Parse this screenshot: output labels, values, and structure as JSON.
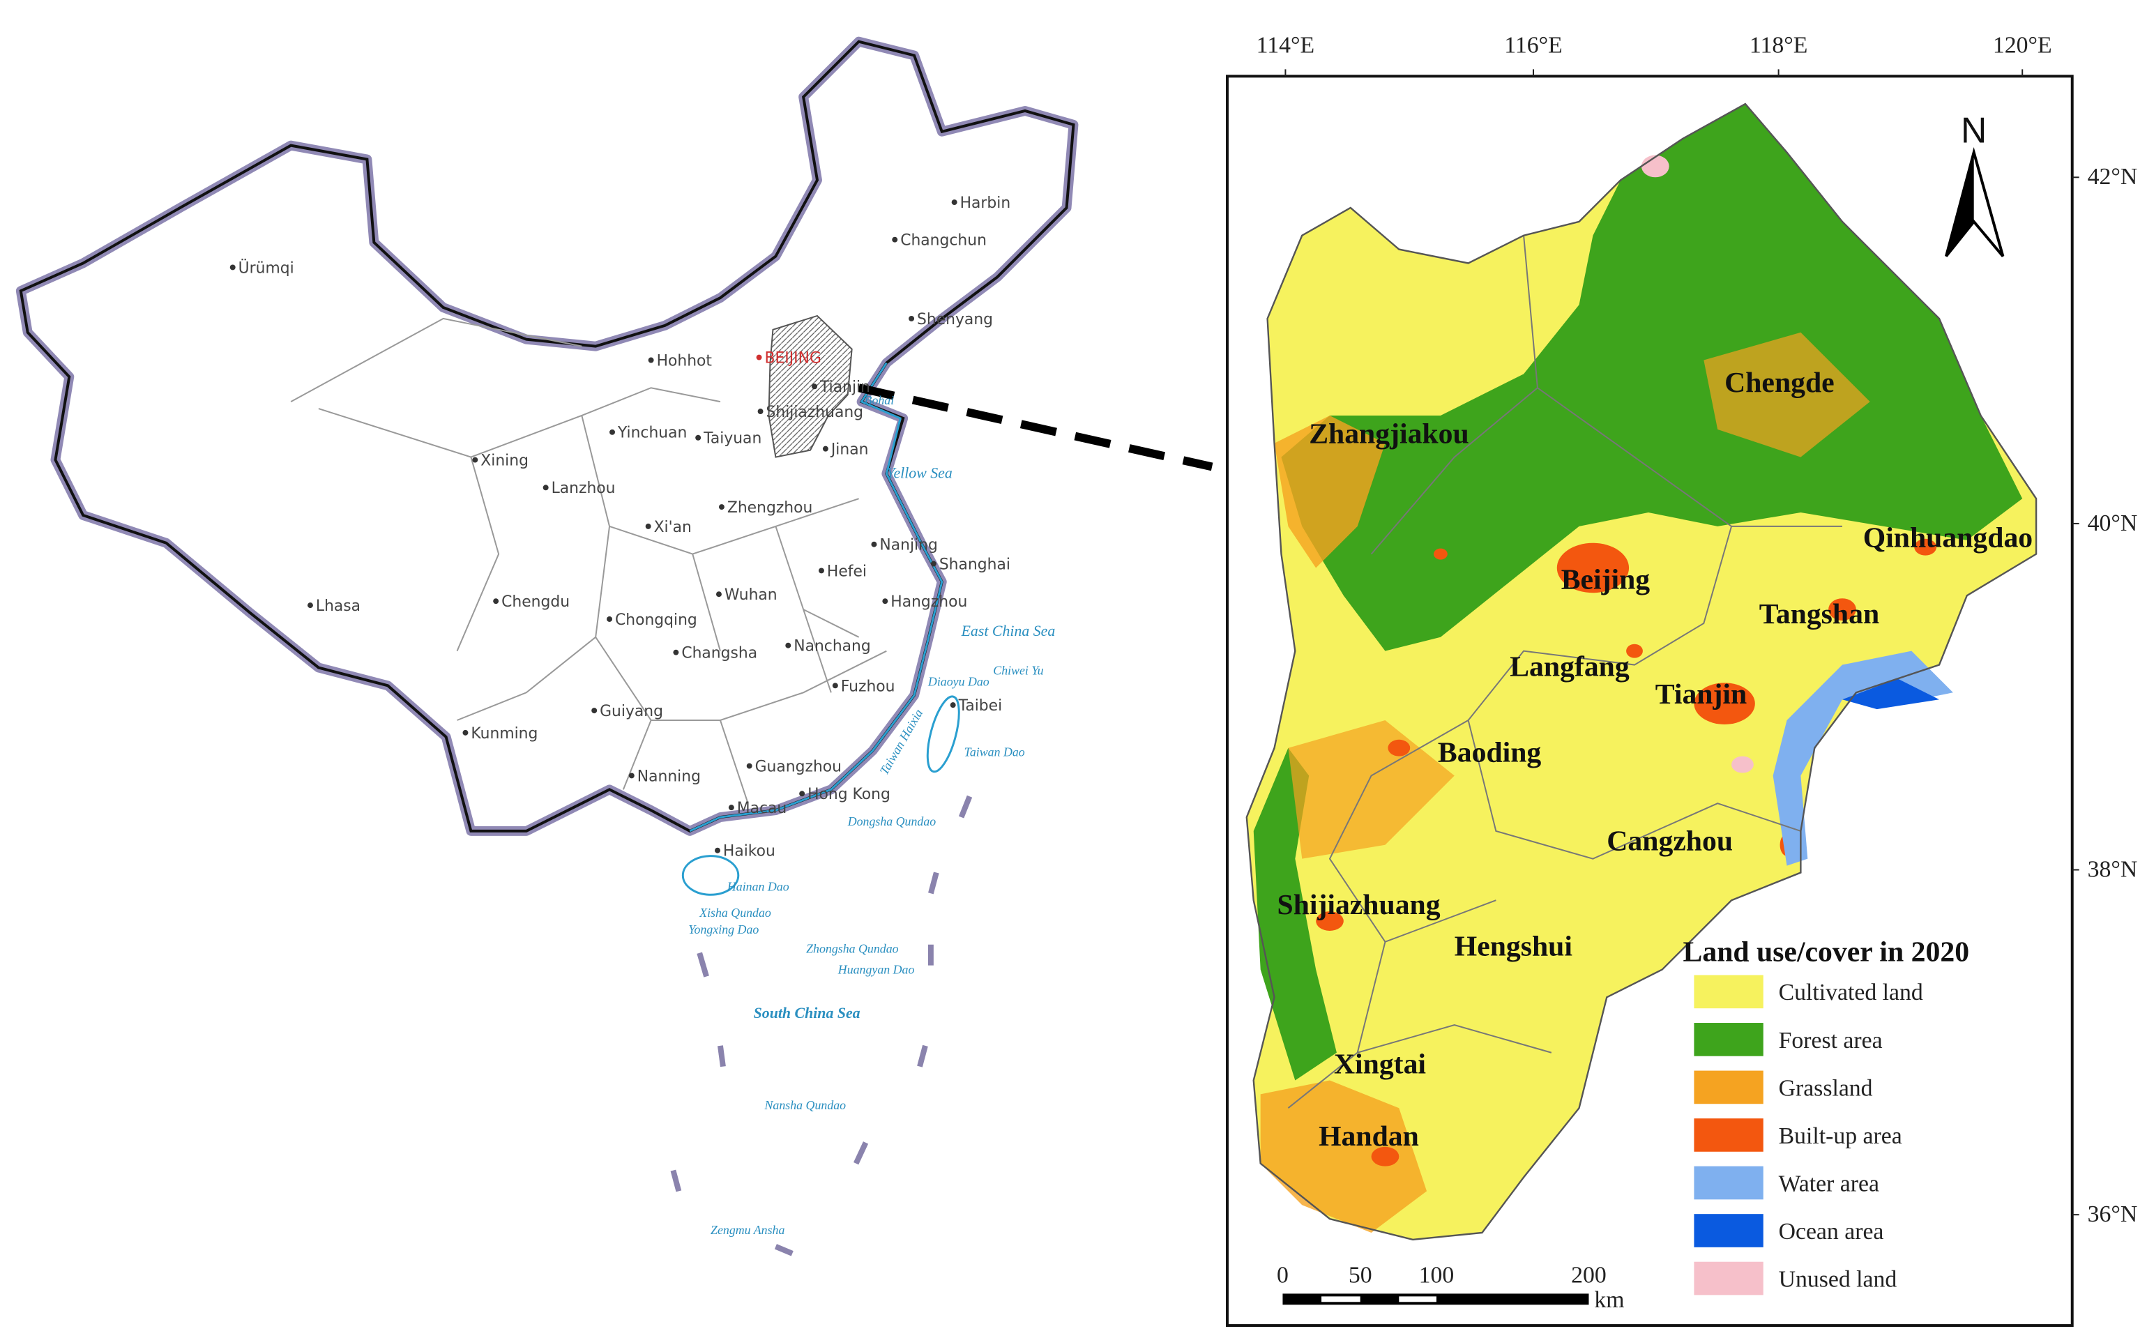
{
  "overview_map": {
    "cities": [
      "Ürümqi",
      "Harbin",
      "Changchun",
      "Shenyang",
      "Hohhot",
      "BEIJING",
      "Tianjin",
      "Shijiazhuang",
      "Taiyuan",
      "Yinchuan",
      "Jinan",
      "Xining",
      "Lanzhou",
      "Xi'an",
      "Zhengzhou",
      "Nanjing",
      "Shanghai",
      "Hefei",
      "Lhasa",
      "Chengdu",
      "Chongqing",
      "Wuhan",
      "Hangzhou",
      "Changsha",
      "Nanchang",
      "Fuzhou",
      "Taibei",
      "Guiyang",
      "Kunming",
      "Nanning",
      "Guangzhou",
      "Hong Kong",
      "Macau",
      "Haikou"
    ],
    "seas_and_islands": [
      "Bohai",
      "Yellow Sea",
      "East China Sea",
      "Diaoyu Dao",
      "Chiwei Yu",
      "Taiwan Dao",
      "Taiwan Haixia",
      "Dongsha Qundao",
      "Hainan Dao",
      "Xisha Qundao",
      "Yongxing Dao",
      "Zhongsha Qundao",
      "Huangyan Dao",
      "South China Sea",
      "Nansha Qundao",
      "Zengmu Ansha"
    ]
  },
  "study_area_map": {
    "longitude_labels": [
      "114°E",
      "116°E",
      "118°E",
      "120°E"
    ],
    "latitude_labels": [
      "42°N",
      "40°N",
      "38°N",
      "36°N"
    ],
    "north_arrow": "N",
    "cities": [
      "Zhangjiakou",
      "Chengde",
      "Qinhuangdao",
      "Beijing",
      "Tangshan",
      "Langfang",
      "Tianjin",
      "Baoding",
      "Cangzhou",
      "Shijiazhuang",
      "Hengshui",
      "Xingtai",
      "Handan"
    ],
    "legend": {
      "title": "Land use/cover in 2020",
      "items": [
        {
          "label": "Cultivated land",
          "color": "#f6f25e"
        },
        {
          "label": "Forest area",
          "color": "#3ea41c"
        },
        {
          "label": "Grassland",
          "color": "#f5a321"
        },
        {
          "label": "Built-up area",
          "color": "#f3570f"
        },
        {
          "label": "Water area",
          "color": "#7fb0ef"
        },
        {
          "label": "Ocean area",
          "color": "#0a5ae0"
        },
        {
          "label": "Unused land",
          "color": "#f6c0ca"
        }
      ]
    },
    "scale_bar": {
      "labels": [
        0,
        50,
        100,
        200
      ],
      "unit": "km"
    }
  }
}
